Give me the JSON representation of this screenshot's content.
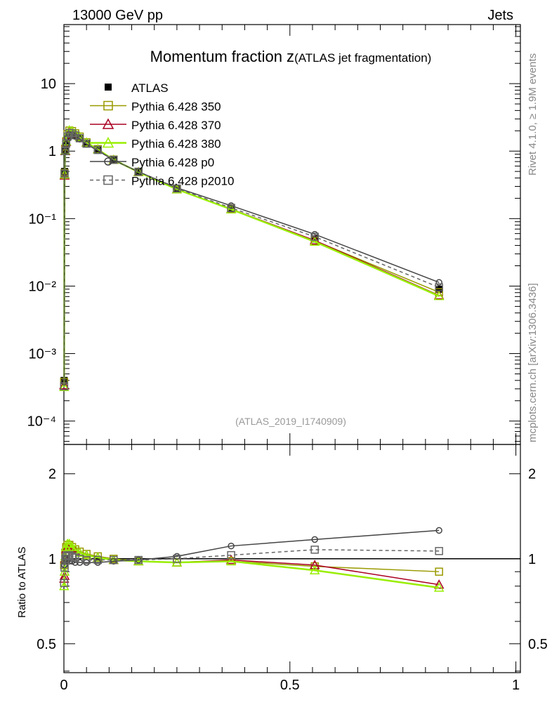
{
  "header": {
    "left": "13000 GeV pp",
    "right": "Jets"
  },
  "side": {
    "rivet": "Rivet 4.1.0, ≥ 1.9M events",
    "mcplots": "mcplots.cern.ch [arXiv:1306.3436]"
  },
  "watermark": "(ATLAS_2019_I1740909)",
  "chart_data": {
    "type": "line",
    "title_main": "Momentum fraction z",
    "title_sub": "(ATLAS jet fragmentation)",
    "xlabel": "",
    "ylabel_ratio": "Ratio to ATLAS",
    "xlim": [
      0,
      1.01
    ],
    "ylim": [
      4.5e-05,
      75
    ],
    "ratio_ylim": [
      0.395,
      2.54
    ],
    "yscale": "log",
    "x_ticks": [
      {
        "v": 0,
        "label": "0"
      },
      {
        "v": 0.5,
        "label": "0.5"
      },
      {
        "v": 1,
        "label": "1"
      }
    ],
    "y_ticks": [
      {
        "v": 10,
        "label": "10"
      },
      {
        "v": 1,
        "label": "1"
      },
      {
        "v": 0.1,
        "label": "10⁻¹"
      },
      {
        "v": 0.01,
        "label": "10⁻²"
      },
      {
        "v": 0.001,
        "label": "10⁻³"
      },
      {
        "v": 0.0001,
        "label": "10⁻⁴"
      }
    ],
    "ratio_ticks": [
      {
        "v": 2,
        "label": "2"
      },
      {
        "v": 1,
        "label": "1"
      },
      {
        "v": 0.5,
        "label": "0.5"
      }
    ],
    "legend_position": "top-left",
    "x": [
      0.0005,
      0.0015,
      0.003,
      0.005,
      0.008,
      0.012,
      0.018,
      0.025,
      0.035,
      0.05,
      0.075,
      0.11,
      0.165,
      0.25,
      0.37,
      0.555,
      0.83
    ],
    "data": {
      "name": "ATLAS",
      "values": [
        0.0004,
        0.5,
        1.0,
        1.27,
        1.6,
        1.8,
        1.8,
        1.7,
        1.55,
        1.3,
        1.05,
        0.75,
        0.5,
        0.28,
        0.14,
        0.05,
        0.009
      ]
    },
    "series": [
      {
        "name": "Pythia 6.428 350",
        "color": "#999900",
        "marker": "square",
        "dash": false,
        "ratio": [
          0.95,
          0.95,
          1.05,
          1.1,
          1.12,
          1.12,
          1.1,
          1.08,
          1.06,
          1.04,
          1.02,
          1.0,
          0.98,
          0.97,
          0.98,
          0.94,
          0.9
        ]
      },
      {
        "name": "Pythia 6.428 370",
        "color": "#aa0022",
        "marker": "triangle",
        "dash": false,
        "ratio": [
          0.85,
          0.87,
          1.0,
          1.08,
          1.1,
          1.1,
          1.09,
          1.07,
          1.05,
          1.03,
          1.01,
          0.99,
          0.98,
          0.97,
          0.99,
          0.95,
          0.81
        ]
      },
      {
        "name": "Pythia 6.428 380",
        "color": "#99ee00",
        "marker": "triangle",
        "dash": false,
        "ratio": [
          0.8,
          0.9,
          1.02,
          1.1,
          1.13,
          1.13,
          1.1,
          1.08,
          1.05,
          1.03,
          1.01,
          0.99,
          0.98,
          0.97,
          0.98,
          0.91,
          0.79
        ]
      },
      {
        "name": "Pythia 6.428 p0",
        "color": "#444444",
        "marker": "circle",
        "dash": false,
        "ratio": [
          0.95,
          0.95,
          1.0,
          1.0,
          0.99,
          0.98,
          0.98,
          0.97,
          0.97,
          0.97,
          0.97,
          0.98,
          0.99,
          1.02,
          1.11,
          1.17,
          1.26
        ]
      },
      {
        "name": "Pythia 6.428 p2010",
        "color": "#666666",
        "marker": "square",
        "dash": true,
        "ratio": [
          0.82,
          0.93,
          1.0,
          1.02,
          1.03,
          1.03,
          1.02,
          1.01,
          1.0,
          0.99,
          0.99,
          0.99,
          0.99,
          1.0,
          1.03,
          1.077,
          1.065
        ]
      }
    ]
  }
}
